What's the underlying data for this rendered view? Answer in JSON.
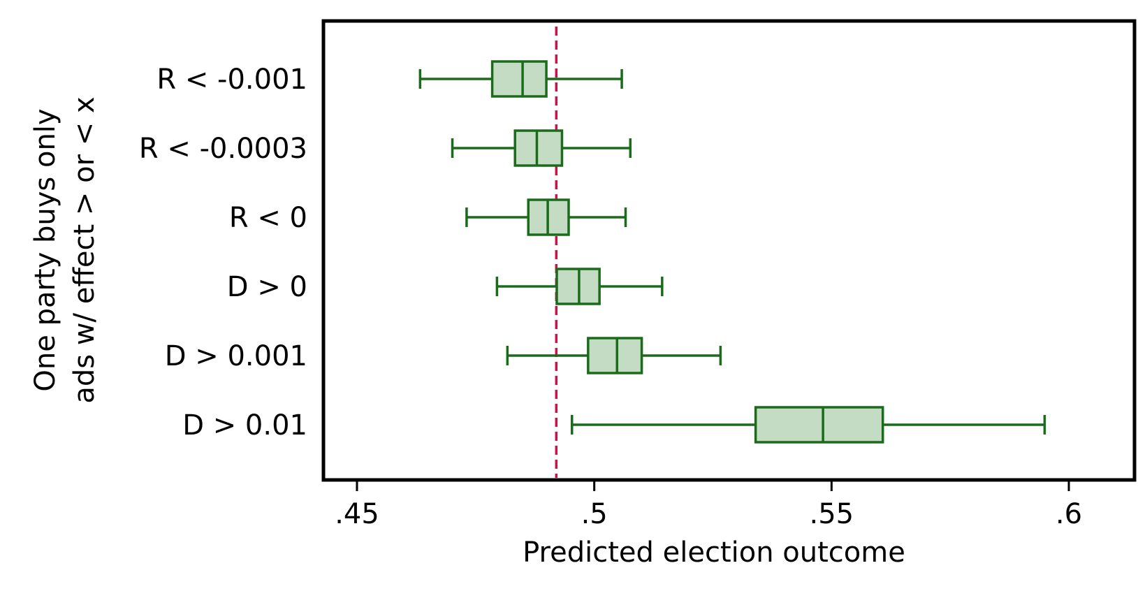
{
  "chart_data": {
    "type": "boxplot",
    "orientation": "horizontal",
    "xlabel": "Predicted election outcome",
    "ylabel_lines": [
      "One party buys only",
      "ads w/ effect > or < x"
    ],
    "xlim": [
      0.443,
      0.606
    ],
    "x_ticks": [
      {
        "value": 0.45,
        "label": ".45"
      },
      {
        "value": 0.5,
        "label": ".5"
      },
      {
        "value": 0.55,
        "label": ".55"
      },
      {
        "value": 0.6,
        "label": ".6"
      }
    ],
    "reference_line": {
      "x": 0.492,
      "style": "dashed"
    },
    "categories": [
      "R < -0.001",
      "R < -0.0003",
      "R < 0",
      "D > 0",
      "D > 0.001",
      "D > 0.01"
    ],
    "boxes": [
      {
        "label": "R < -0.001",
        "whisker_low": 0.4633,
        "q1": 0.4785,
        "median": 0.4849,
        "q3": 0.4899,
        "whisker_high": 0.5058
      },
      {
        "label": "R < -0.0003",
        "whisker_low": 0.4701,
        "q1": 0.4833,
        "median": 0.4879,
        "q3": 0.4932,
        "whisker_high": 0.5076
      },
      {
        "label": "R < 0",
        "whisker_low": 0.4731,
        "q1": 0.4861,
        "median": 0.4902,
        "q3": 0.4946,
        "whisker_high": 0.5066
      },
      {
        "label": "D > 0",
        "whisker_low": 0.4795,
        "q1": 0.4921,
        "median": 0.4968,
        "q3": 0.5011,
        "whisker_high": 0.5143
      },
      {
        "label": "D > 0.001",
        "whisker_low": 0.4817,
        "q1": 0.4987,
        "median": 0.5048,
        "q3": 0.51,
        "whisker_high": 0.5266
      },
      {
        "label": "D > 0.01",
        "whisker_low": 0.4953,
        "q1": 0.534,
        "median": 0.5482,
        "q3": 0.5608,
        "whisker_high": 0.5949
      }
    ],
    "grid": false,
    "colors": {
      "box_fill": "#c3dcc3",
      "box_stroke": "#1a6b1a",
      "reference_line": "#c0174a",
      "frame": "#000000"
    }
  }
}
